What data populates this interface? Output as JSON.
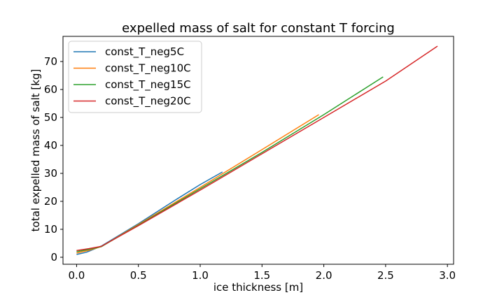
{
  "chart_data": {
    "type": "line",
    "title": "expelled mass of salt for constant T forcing",
    "xlabel": "ice thickness [m]",
    "ylabel": "total expelled mass of salt [kg]",
    "xlim": [
      -0.11,
      3.05
    ],
    "ylim": [
      -2.5,
      79
    ],
    "xticks": [
      0.0,
      0.5,
      1.0,
      1.5,
      2.0,
      2.5,
      3.0
    ],
    "xtick_labels": [
      "0.0",
      "0.5",
      "1.0",
      "1.5",
      "2.0",
      "2.5",
      "3.0"
    ],
    "yticks": [
      0,
      10,
      20,
      30,
      40,
      50,
      60,
      70
    ],
    "ytick_labels": [
      "0",
      "10",
      "20",
      "30",
      "40",
      "50",
      "60",
      "70"
    ],
    "grid": false,
    "legend_position": "top-left",
    "series": [
      {
        "name": "const_T_neg5C",
        "color": "#1f77b4",
        "x": [
          0.0,
          0.08,
          0.2,
          0.5,
          0.8,
          1.0,
          1.18
        ],
        "y": [
          1.0,
          1.8,
          4.0,
          12.0,
          20.5,
          26.0,
          30.5
        ]
      },
      {
        "name": "const_T_neg10C",
        "color": "#ff7f0e",
        "x": [
          0.0,
          0.1,
          0.2,
          0.5,
          1.0,
          1.5,
          1.96
        ],
        "y": [
          1.5,
          2.5,
          3.8,
          11.7,
          25.0,
          38.5,
          51.0
        ]
      },
      {
        "name": "const_T_neg15C",
        "color": "#2ca02c",
        "x": [
          0.0,
          0.1,
          0.2,
          0.5,
          1.0,
          1.5,
          2.0,
          2.48
        ],
        "y": [
          2.0,
          2.8,
          3.8,
          11.5,
          24.5,
          37.5,
          51.0,
          64.5
        ]
      },
      {
        "name": "const_T_neg20C",
        "color": "#d62728",
        "x": [
          0.0,
          0.1,
          0.2,
          0.5,
          1.0,
          1.5,
          2.0,
          2.5,
          2.92
        ],
        "y": [
          2.4,
          3.1,
          3.9,
          11.3,
          24.0,
          37.0,
          50.0,
          63.0,
          75.5
        ]
      }
    ]
  }
}
